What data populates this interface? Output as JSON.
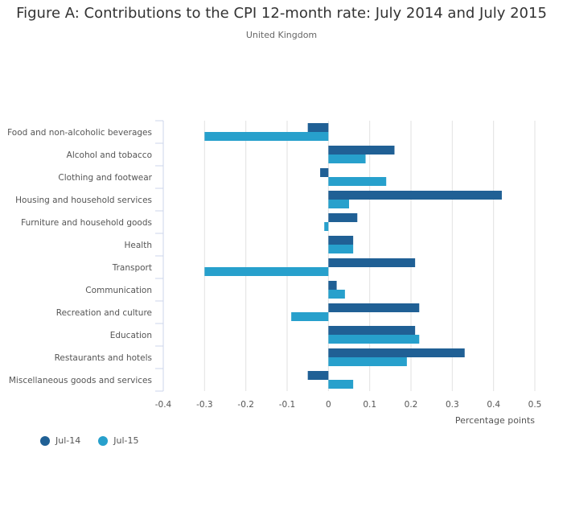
{
  "chart_data": {
    "type": "bar",
    "orientation": "horizontal",
    "title": "Figure A: Contributions to the CPI 12-month rate: July 2014 and July 2015",
    "subtitle": "United Kingdom",
    "xlabel": "Percentage points",
    "ylabel": "",
    "xlim": [
      -0.4,
      0.5
    ],
    "xticks": [
      -0.4,
      -0.3,
      -0.2,
      -0.1,
      0,
      0.1,
      0.2,
      0.3,
      0.4,
      0.5
    ],
    "xtick_labels": [
      "-0.4",
      "-0.3",
      "-0.2",
      "-0.1",
      "0",
      "0.1",
      "0.2",
      "0.3",
      "0.4",
      "0.5"
    ],
    "grid": true,
    "legend_position": "bottom-left",
    "categories": [
      "Food and non-alcoholic beverages",
      "Alcohol and tobacco",
      "Clothing and footwear",
      "Housing and household services",
      "Furniture and household goods",
      "Health",
      "Transport",
      "Communication",
      "Recreation and culture",
      "Education",
      "Restaurants and hotels",
      "Miscellaneous goods and services"
    ],
    "series": [
      {
        "name": "Jul-14",
        "color": "#206095",
        "values": [
          -0.05,
          0.16,
          -0.02,
          0.42,
          0.07,
          0.06,
          0.21,
          0.02,
          0.22,
          0.21,
          0.33,
          -0.05
        ]
      },
      {
        "name": "Jul-15",
        "color": "#27a0cc",
        "values": [
          -0.3,
          0.09,
          0.14,
          0.05,
          -0.01,
          0.06,
          -0.3,
          0.04,
          -0.09,
          0.22,
          0.19,
          0.06
        ]
      }
    ]
  },
  "colors": {
    "gridline": "#e2e2e2",
    "axis": "#ccd6eb",
    "text": "#555555"
  }
}
